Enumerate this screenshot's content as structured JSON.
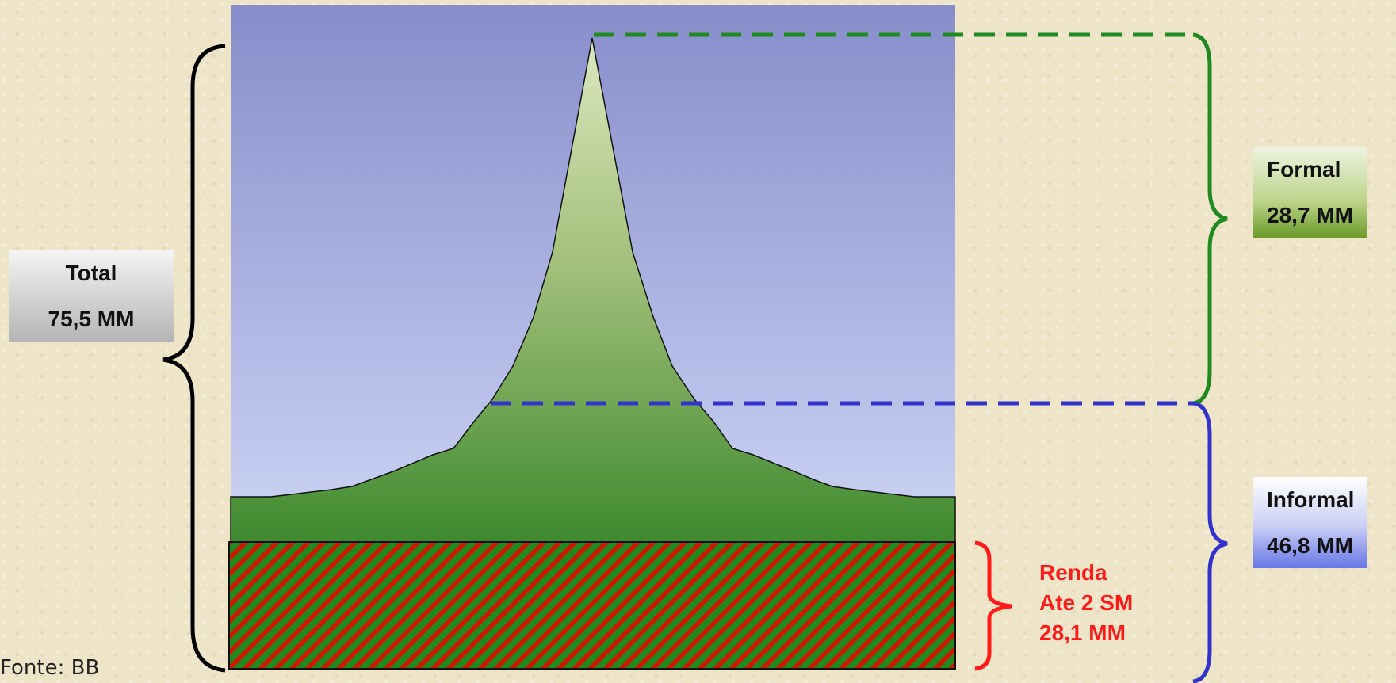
{
  "labels": {
    "total": {
      "title": "Total",
      "value": "75,5 MM"
    },
    "formal": {
      "title": "Formal",
      "value": "28,7 MM"
    },
    "informal": {
      "title": "Informal",
      "value": "46,8 MM"
    },
    "renda": {
      "line1": "Renda",
      "line2": "Ate 2 SM",
      "line3": "28,1 MM"
    }
  },
  "source": "Fonte:  BB",
  "colors": {
    "sky_top": "#8a8fcb",
    "sky_bottom": "#c8d0f4",
    "mountain_top": "#d4e2b4",
    "mountain_bottom": "#3f8a2e",
    "hatch_green": "#1f8a1f",
    "hatch_red": "#cc1a00",
    "brace_total": "#000000",
    "brace_formal": "#1f8a1f",
    "brace_informal": "#3333cc",
    "brace_renda": "#ff1a1a"
  }
}
